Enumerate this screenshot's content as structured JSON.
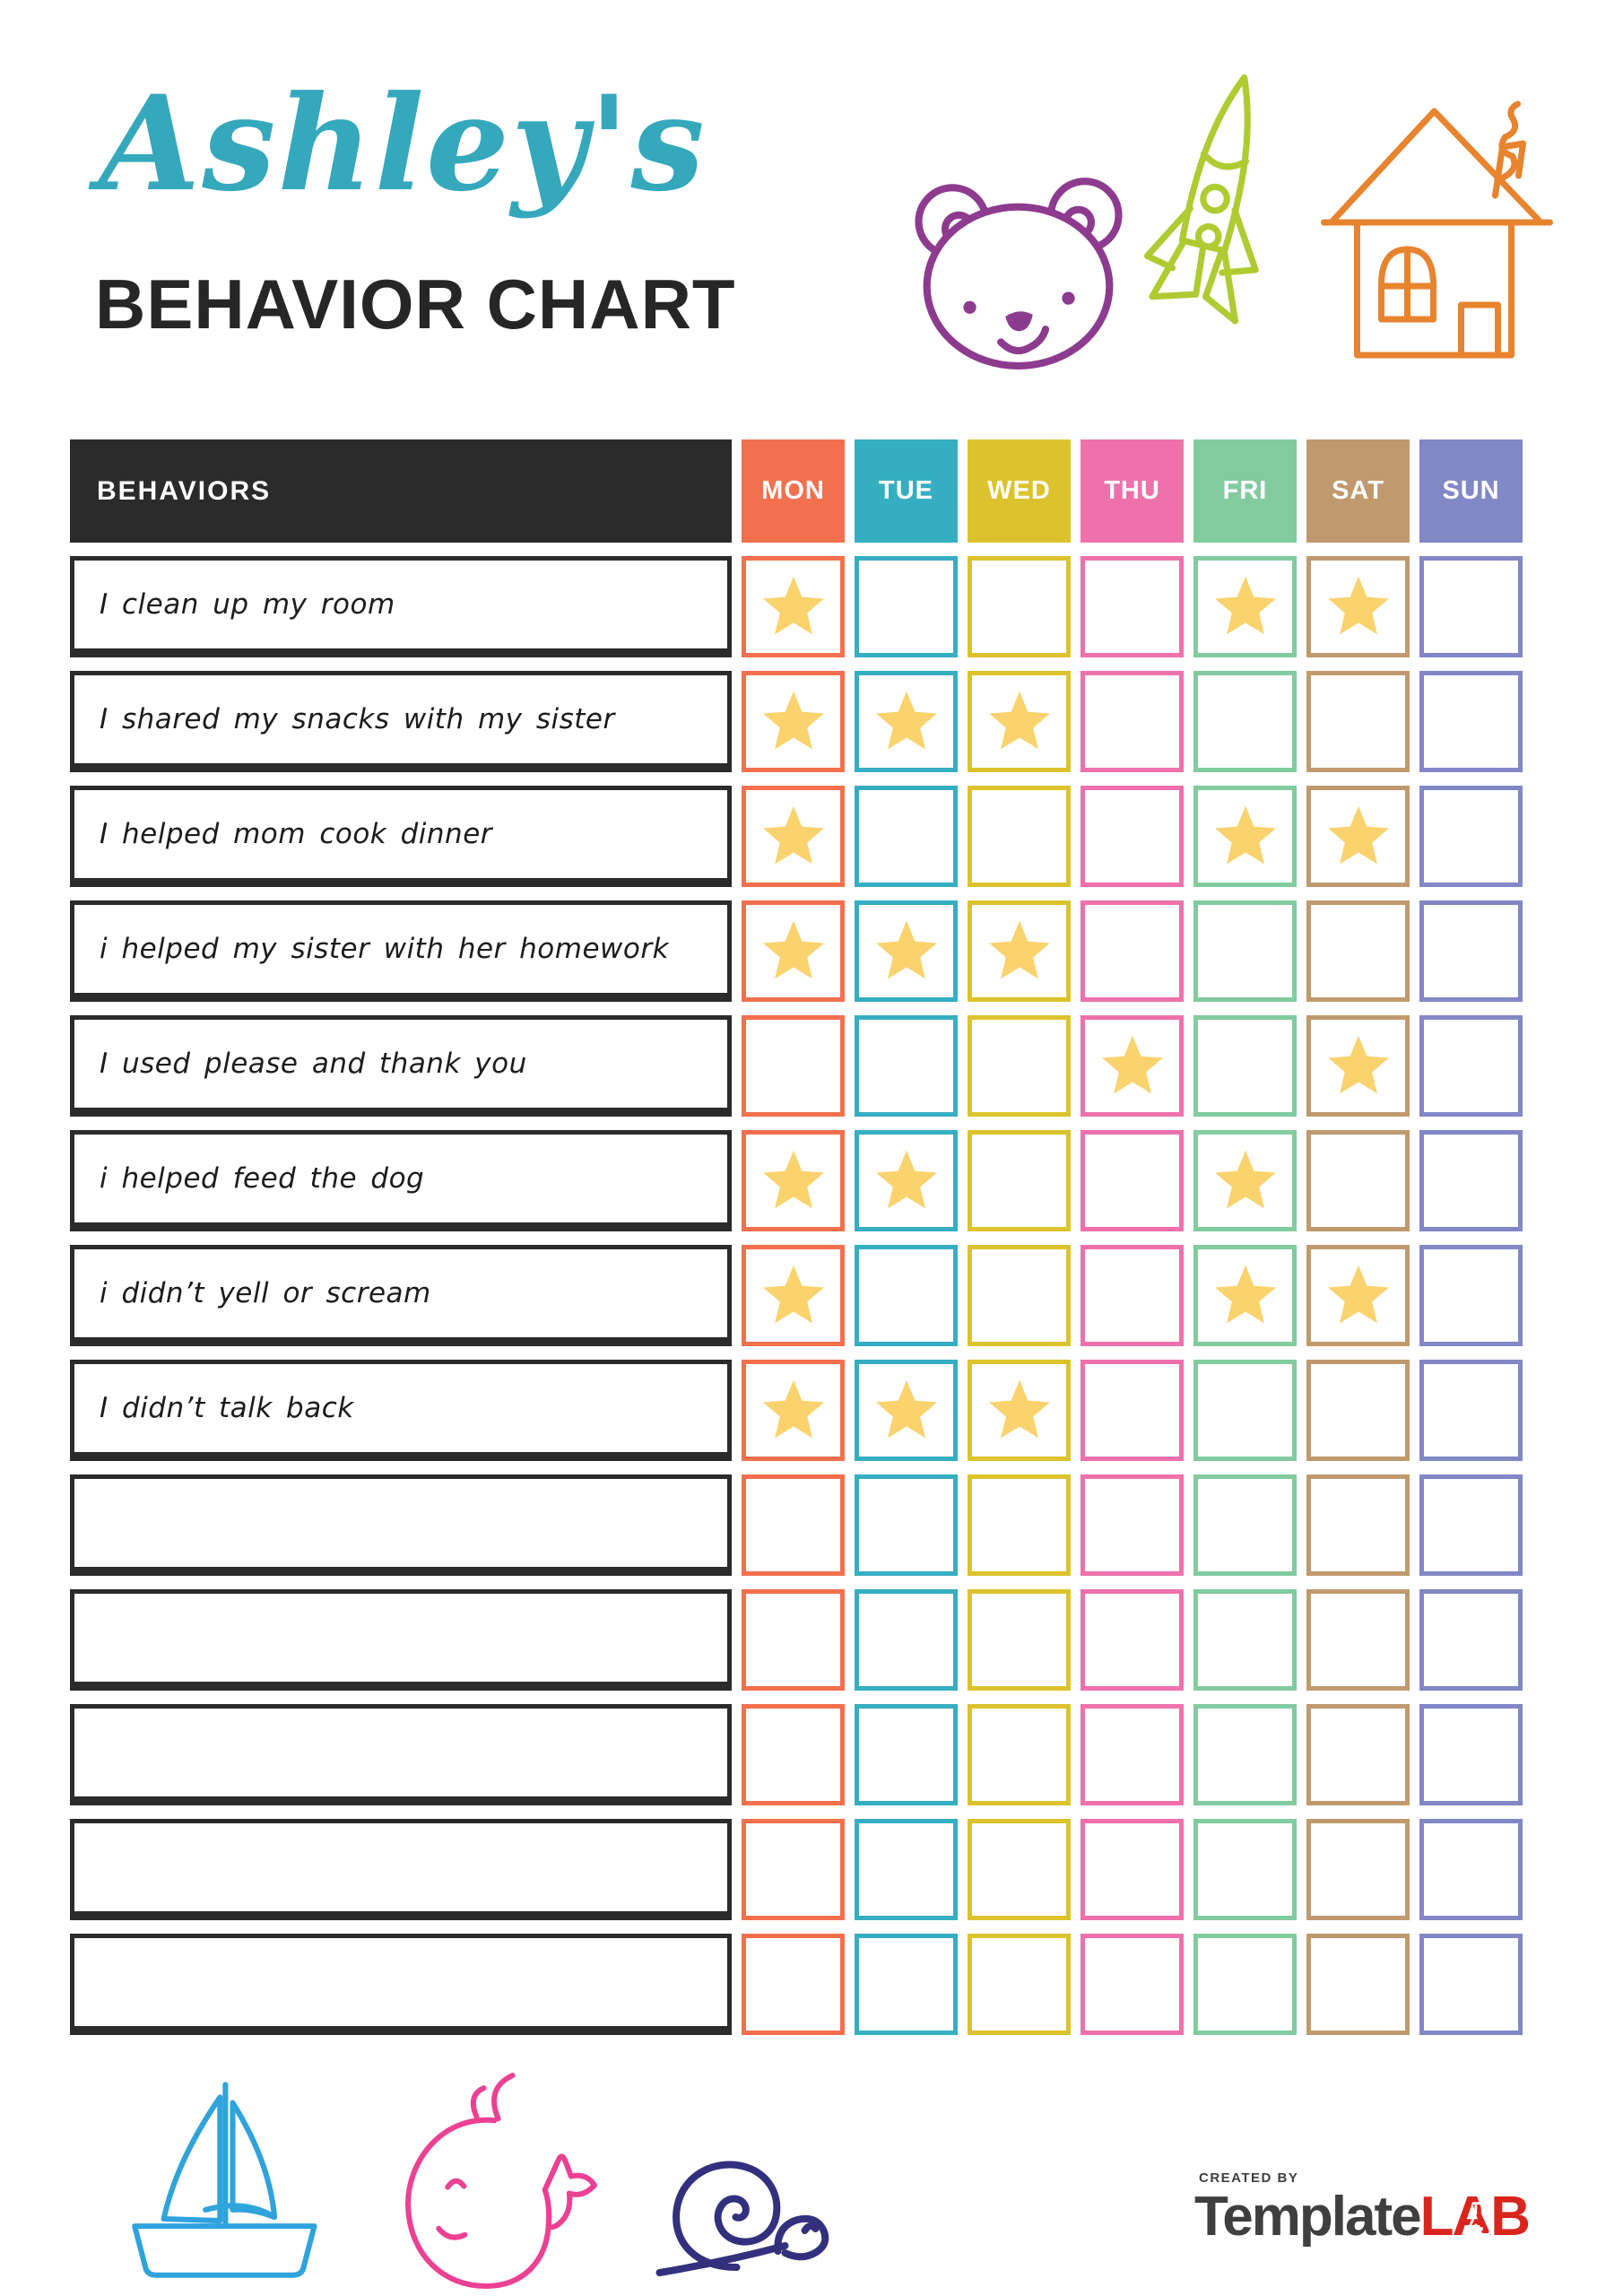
{
  "header": {
    "owner_name": "Ashley's",
    "title": "BEHAVIOR CHART"
  },
  "table": {
    "behaviors_header": "BEHAVIORS",
    "days": [
      {
        "label": "MON",
        "color": "#F3704E"
      },
      {
        "label": "TUE",
        "color": "#36AEC1"
      },
      {
        "label": "WED",
        "color": "#DCC32D"
      },
      {
        "label": "THU",
        "color": "#EE71AC"
      },
      {
        "label": "FRI",
        "color": "#82CB9F"
      },
      {
        "label": "SAT",
        "color": "#C09A6E"
      },
      {
        "label": "SUN",
        "color": "#8287C6"
      }
    ],
    "star_color": "#FAD36E",
    "rows": [
      {
        "behavior": "I clean up my room",
        "stars": [
          "MON",
          "FRI",
          "SAT"
        ]
      },
      {
        "behavior": "I shared my snacks with my sister",
        "stars": [
          "MON",
          "TUE",
          "WED"
        ]
      },
      {
        "behavior": "I helped mom cook dinner",
        "stars": [
          "MON",
          "FRI",
          "SAT"
        ]
      },
      {
        "behavior": "i helped my sister with her homework",
        "stars": [
          "MON",
          "TUE",
          "WED"
        ]
      },
      {
        "behavior": "I used please and thank you",
        "stars": [
          "THU",
          "SAT"
        ]
      },
      {
        "behavior": "i helped feed the dog",
        "stars": [
          "MON",
          "TUE",
          "FRI"
        ]
      },
      {
        "behavior": "i didn’t yell or scream",
        "stars": [
          "MON",
          "FRI",
          "SAT"
        ]
      },
      {
        "behavior": "I didn’t talk back",
        "stars": [
          "MON",
          "TUE",
          "WED"
        ]
      },
      {
        "behavior": "",
        "stars": []
      },
      {
        "behavior": "",
        "stars": []
      },
      {
        "behavior": "",
        "stars": []
      },
      {
        "behavior": "",
        "stars": []
      },
      {
        "behavior": "",
        "stars": []
      }
    ]
  },
  "decorations": {
    "top": [
      {
        "name": "bear-icon",
        "color": "#8D3B8F"
      },
      {
        "name": "rocket-icon",
        "color": "#AFCB32"
      },
      {
        "name": "house-icon",
        "color": "#E8832E"
      }
    ],
    "bottom": [
      {
        "name": "sailboat-icon",
        "color": "#2FA3DC"
      },
      {
        "name": "whale-icon",
        "color": "#EC4193"
      },
      {
        "name": "snail-icon",
        "color": "#33307E"
      }
    ]
  },
  "footer": {
    "created_by": "CREATED BY",
    "brand_name": "Template",
    "brand_suffix": "LAB",
    "brand_color": "#3F3F3F",
    "brand_accent_color": "#DA251C"
  },
  "colors": {
    "owner_name": "#35A8BC",
    "title": "#262626",
    "header_bg": "#2B2B2B"
  }
}
